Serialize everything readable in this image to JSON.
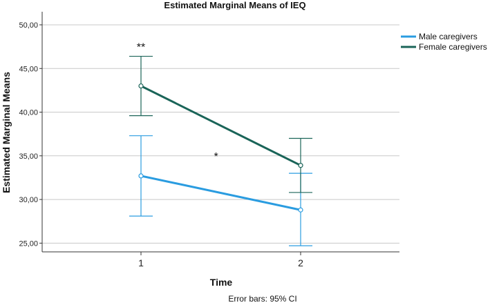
{
  "chart_data": {
    "type": "line",
    "title": "Estimated Marginal Means of IEQ",
    "xlabel": "Time",
    "ylabel": "Estimated Marginal Means",
    "categories": [
      "1",
      "2"
    ],
    "ylim": [
      24.0,
      51.5
    ],
    "yticks": [
      25,
      30,
      35,
      40,
      45,
      50
    ],
    "ytick_labels": [
      "25,00",
      "30,00",
      "35,00",
      "40,00",
      "45,00",
      "50,00"
    ],
    "grid": true,
    "legend_position": "top-right",
    "series": [
      {
        "name": "Male caregivers",
        "color": "#2a9ce0",
        "values": [
          32.7,
          28.8
        ],
        "ci_lower": [
          28.1,
          24.7
        ],
        "ci_upper": [
          37.3,
          33.0
        ]
      },
      {
        "name": "Female caregivers",
        "color": "#1a6458",
        "values": [
          43.0,
          33.9
        ],
        "ci_lower": [
          39.6,
          30.8
        ],
        "ci_upper": [
          46.4,
          37.0
        ]
      }
    ],
    "annotations": [
      {
        "text": "**",
        "x": 1,
        "y": 47.5
      },
      {
        "text": "*",
        "x": 1.47,
        "y": 35.0
      }
    ],
    "footnote": "Error bars: 95% CI"
  }
}
